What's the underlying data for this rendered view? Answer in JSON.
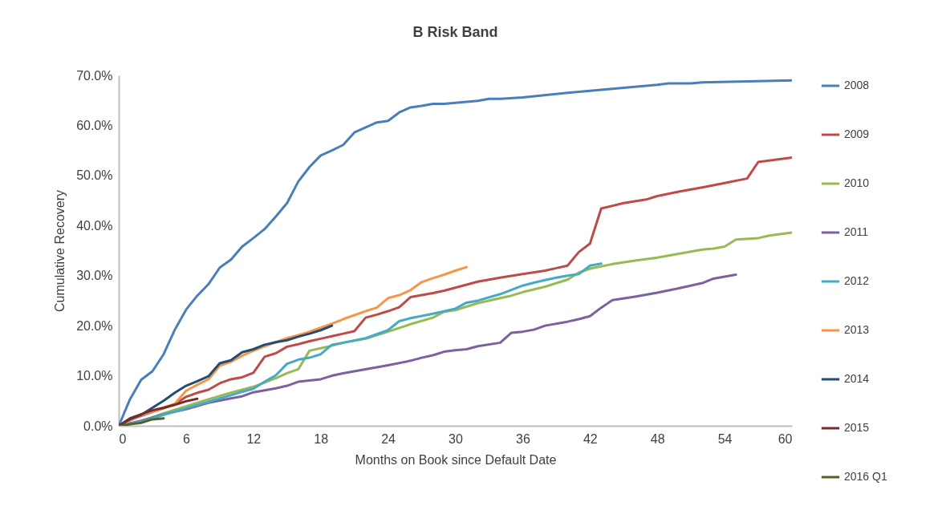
{
  "chart_data": {
    "type": "line",
    "title": "B Risk Band",
    "xlabel": "Months on Book since Default Date",
    "ylabel": "Cumulative Recovery",
    "xlim": [
      0,
      60
    ],
    "xticks": [
      0,
      6,
      12,
      18,
      24,
      30,
      36,
      42,
      48,
      54,
      60
    ],
    "ylim": [
      0,
      70
    ],
    "yticks": [
      {
        "value": 0,
        "label": "0.0%"
      },
      {
        "value": 10,
        "label": "10.0%"
      },
      {
        "value": 20,
        "label": "20.0%"
      },
      {
        "value": 30,
        "label": "30.0%"
      },
      {
        "value": 40,
        "label": "40.0%"
      },
      {
        "value": 50,
        "label": "50.0%"
      },
      {
        "value": 60,
        "label": "60.0%"
      },
      {
        "value": 70,
        "label": "70.0%"
      }
    ],
    "grid": false,
    "legend": "right",
    "marker": "none",
    "line_style": "solid",
    "series": [
      {
        "name": "2008",
        "color": "#4a7ebb",
        "x": [
          0,
          1,
          2,
          3,
          4,
          5,
          6,
          7,
          8,
          9,
          10,
          11,
          12,
          13,
          14,
          15,
          16,
          17,
          18,
          19,
          20,
          21,
          22,
          23,
          24,
          25,
          26,
          27,
          28,
          29,
          30,
          32,
          33,
          34,
          36,
          40,
          44,
          48,
          49,
          51,
          52,
          56,
          60
        ],
        "values": [
          0,
          5.3,
          9.2,
          10.9,
          14.3,
          19.2,
          23.2,
          26,
          28.3,
          31.6,
          33.2,
          35.8,
          37.5,
          39.3,
          41.8,
          44.5,
          48.8,
          51.7,
          54,
          55,
          56.1,
          58.6,
          59.6,
          60.6,
          60.9,
          62.6,
          63.6,
          63.9,
          64.3,
          64.3,
          64.5,
          64.9,
          65.3,
          65.3,
          65.6,
          66.5,
          67.3,
          68.1,
          68.4,
          68.4,
          68.6,
          68.8,
          69.0
        ]
      },
      {
        "name": "2009",
        "color": "#be4b48",
        "x": [
          0,
          1,
          2,
          3,
          4,
          5,
          6,
          7,
          8,
          9,
          10,
          11,
          12,
          13,
          14,
          15,
          16,
          17,
          18,
          19,
          20,
          21,
          22,
          23,
          24,
          25,
          26,
          27,
          28,
          29,
          30,
          32,
          34,
          36,
          38,
          39,
          40,
          41,
          42,
          43,
          45,
          47,
          48,
          50,
          52,
          54,
          56,
          57,
          60
        ],
        "values": [
          0,
          1.2,
          2.0,
          2.8,
          3.5,
          4.3,
          5.8,
          6.6,
          7.2,
          8.5,
          9.3,
          9.7,
          10.6,
          13.8,
          14.5,
          15.8,
          16.3,
          16.9,
          17.4,
          17.9,
          18.4,
          18.9,
          21.6,
          22.2,
          22.9,
          23.7,
          25.7,
          26.1,
          26.5,
          27.0,
          27.6,
          28.8,
          29.6,
          30.3,
          31.0,
          31.5,
          32.0,
          34.7,
          36.4,
          43.4,
          44.5,
          45.2,
          45.9,
          46.8,
          47.6,
          48.5,
          49.4,
          52.7,
          53.6
        ]
      },
      {
        "name": "2010",
        "color": "#98b954",
        "x": [
          0,
          2,
          4,
          6,
          8,
          10,
          12,
          14,
          15,
          16,
          17,
          18,
          19,
          20,
          22,
          24,
          26,
          28,
          29,
          30,
          32,
          34,
          35,
          36,
          38,
          40,
          41,
          42,
          44,
          46,
          48,
          50,
          52,
          53,
          54,
          55,
          57,
          58,
          60
        ],
        "values": [
          0,
          0.9,
          2.5,
          3.9,
          5.3,
          6.6,
          7.8,
          9.5,
          10.5,
          11.3,
          15.0,
          15.5,
          16.0,
          16.6,
          17.4,
          18.8,
          20.3,
          21.6,
          22.8,
          23.1,
          24.5,
          25.5,
          26.0,
          26.7,
          27.8,
          29.2,
          30.6,
          31.4,
          32.3,
          33.0,
          33.6,
          34.4,
          35.2,
          35.4,
          35.8,
          37.2,
          37.5,
          38.0,
          38.6
        ]
      },
      {
        "name": "2011",
        "color": "#7d60a0",
        "x": [
          0,
          2,
          4,
          6,
          8,
          10,
          11,
          12,
          14,
          15,
          16,
          18,
          19,
          20,
          22,
          24,
          26,
          27,
          28,
          29,
          30,
          31,
          32,
          34,
          35,
          36,
          37,
          38,
          40,
          41,
          42,
          43,
          44,
          46,
          48,
          50,
          52,
          53,
          55
        ],
        "values": [
          0,
          1.0,
          2.3,
          3.3,
          4.6,
          5.5,
          5.9,
          6.7,
          7.5,
          8.0,
          8.8,
          9.3,
          10.0,
          10.5,
          11.3,
          12.1,
          13.0,
          13.6,
          14.1,
          14.8,
          15.1,
          15.3,
          15.9,
          16.6,
          18.6,
          18.8,
          19.2,
          20.0,
          20.8,
          21.3,
          21.9,
          23.6,
          25.1,
          25.8,
          26.6,
          27.5,
          28.5,
          29.4,
          30.2
        ]
      },
      {
        "name": "2012",
        "color": "#46aac5",
        "x": [
          0,
          2,
          4,
          6,
          8,
          10,
          11,
          12,
          13,
          14,
          15,
          16,
          17,
          18,
          19,
          20,
          22,
          24,
          25,
          26,
          28,
          30,
          31,
          32,
          34,
          36,
          37,
          38,
          39,
          40,
          41,
          42,
          43
        ],
        "values": [
          0,
          0.8,
          2.2,
          3.5,
          4.8,
          6.1,
          6.8,
          7.4,
          8.8,
          10.1,
          12.4,
          13.2,
          13.6,
          14.3,
          16.2,
          16.6,
          17.5,
          19.1,
          20.9,
          21.5,
          22.4,
          23.4,
          24.6,
          25.0,
          26.3,
          28.0,
          28.6,
          29.1,
          29.6,
          30.0,
          30.3,
          32.0,
          32.4
        ]
      },
      {
        "name": "2013",
        "color": "#f79646",
        "x": [
          0,
          2,
          4,
          5,
          6,
          7,
          8,
          9,
          10,
          11,
          12,
          13,
          14,
          15,
          16,
          17,
          18,
          19,
          20,
          21,
          22,
          23,
          24,
          25,
          26,
          27,
          28,
          29,
          30,
          31
        ],
        "values": [
          0,
          2.1,
          3.6,
          4.4,
          7.0,
          8.2,
          9.3,
          12.0,
          12.8,
          14.0,
          15.0,
          15.9,
          16.7,
          17.5,
          18.1,
          18.8,
          19.6,
          20.4,
          21.3,
          22.1,
          22.9,
          23.6,
          25.5,
          26.1,
          27.1,
          28.7,
          29.5,
          30.2,
          31.0,
          31.7
        ]
      },
      {
        "name": "2014",
        "color": "#254d74",
        "x": [
          0,
          1,
          2,
          3,
          4,
          5,
          6,
          7,
          8,
          9,
          10,
          11,
          12,
          13,
          14,
          15,
          16,
          17,
          18,
          19
        ],
        "values": [
          0,
          1.3,
          2.2,
          3.6,
          5.0,
          6.6,
          8.0,
          8.9,
          9.9,
          12.5,
          13.1,
          14.7,
          15.3,
          16.2,
          16.7,
          17.1,
          17.8,
          18.4,
          19.1,
          20.0
        ]
      },
      {
        "name": "2015",
        "color": "#772c2a",
        "x": [
          0,
          1,
          2,
          3,
          4,
          5,
          6,
          7
        ],
        "values": [
          0,
          1.5,
          2.3,
          3.1,
          3.6,
          4.2,
          4.9,
          5.4
        ]
      },
      {
        "name": "2016 Q1",
        "color": "#4f6228",
        "x": [
          0,
          1,
          2,
          3,
          4
        ],
        "values": [
          0,
          0.3,
          0.6,
          1.3,
          1.5
        ]
      }
    ]
  }
}
